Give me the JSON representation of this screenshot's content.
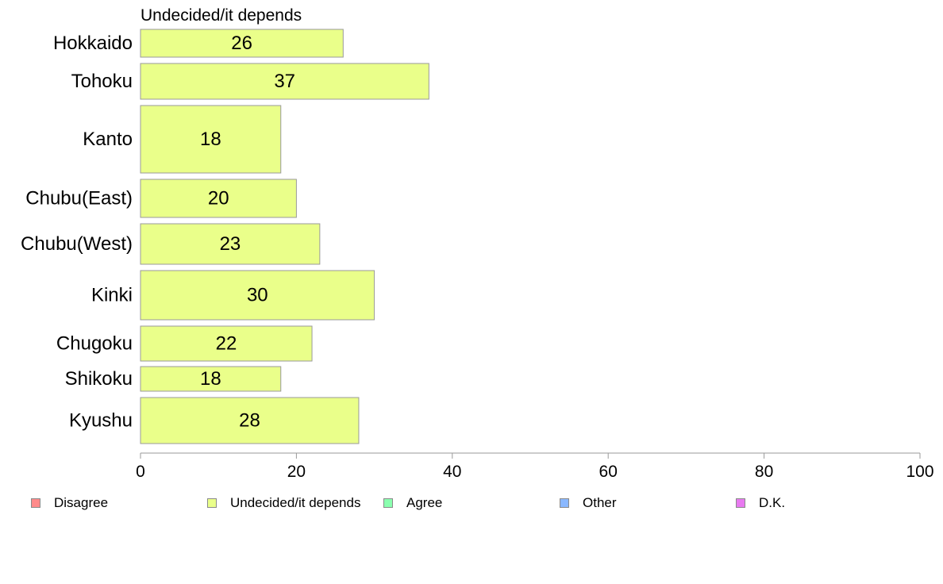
{
  "chart_data": {
    "type": "bar",
    "orientation": "horizontal",
    "title": "Undecided/it depends",
    "categories": [
      "Hokkaido",
      "Tohoku",
      "Kanto",
      "Chubu(East)",
      "Chubu(West)",
      "Kinki",
      "Chugoku",
      "Shikoku",
      "Kyushu"
    ],
    "series": [
      {
        "name": "Undecided/it depends",
        "color": "#EAFF8A",
        "values": [
          26,
          37,
          18,
          20,
          23,
          30,
          22,
          18,
          28
        ],
        "labels": [
          "26",
          "37",
          "18",
          "20",
          "23",
          "30",
          "22",
          "18",
          "28"
        ]
      }
    ],
    "xlim": [
      0,
      100
    ],
    "xticks": [
      "0",
      "20",
      "40",
      "60",
      "80",
      "100"
    ],
    "grid": false,
    "legend": {
      "placement": "bottom",
      "entries": [
        {
          "label": "Disagree",
          "color": "#FF8A8A"
        },
        {
          "label": "Undecided/it depends",
          "color": "#EAFF8A"
        },
        {
          "label": "Agree",
          "color": "#8AFFAF"
        },
        {
          "label": "Other",
          "color": "#8AB8FF"
        },
        {
          "label": "D.K.",
          "color": "#E87AF0"
        }
      ]
    }
  }
}
